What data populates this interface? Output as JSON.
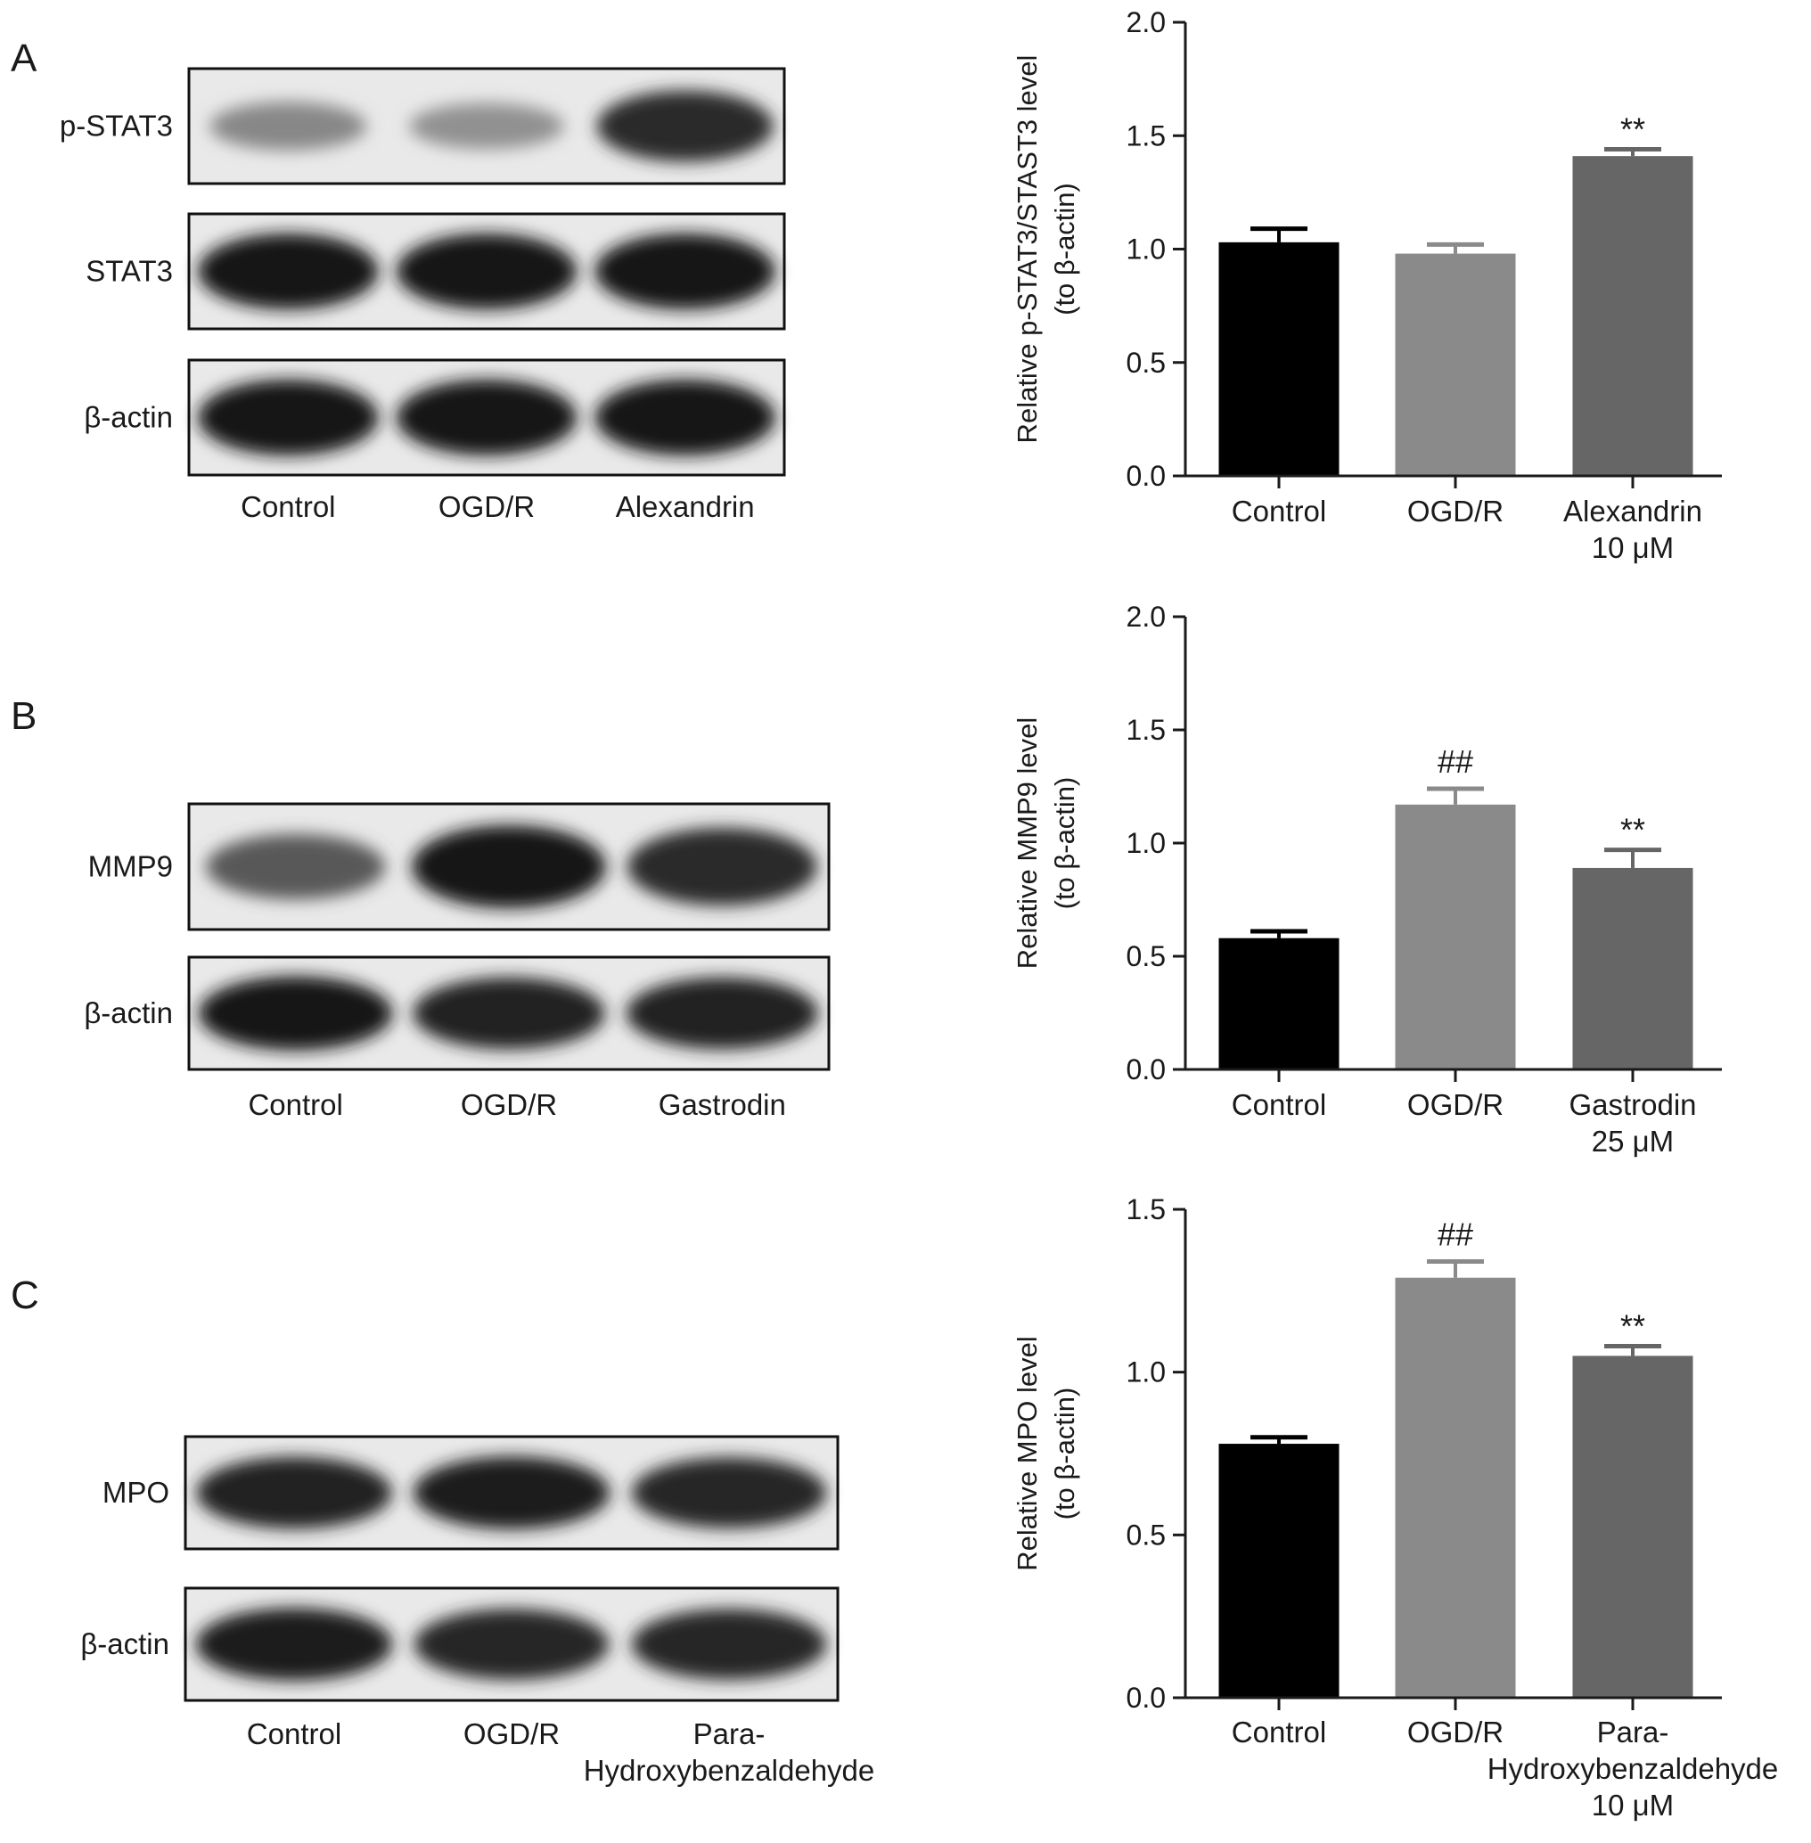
{
  "blots": [
    {
      "panel": "A",
      "lanes": [
        "Control",
        "OGD/R",
        "Alexandrin"
      ],
      "lanes_line2": [
        "",
        "",
        ""
      ],
      "bands": [
        {
          "label": "p-STAT3",
          "intensity": [
            0.35,
            0.3,
            0.85
          ]
        },
        {
          "label": "STAT3",
          "intensity": [
            0.95,
            0.95,
            0.95
          ]
        },
        {
          "label": "β-actin",
          "intensity": [
            0.95,
            0.95,
            0.95
          ]
        }
      ]
    },
    {
      "panel": "B",
      "lanes": [
        "Control",
        "OGD/R",
        "Gastrodin"
      ],
      "lanes_line2": [
        "",
        "",
        ""
      ],
      "bands": [
        {
          "label": "MMP9",
          "intensity": [
            0.6,
            0.95,
            0.85
          ]
        },
        {
          "label": "β-actin",
          "intensity": [
            0.95,
            0.9,
            0.9
          ]
        }
      ]
    },
    {
      "panel": "C",
      "lanes": [
        "Control",
        "OGD/R",
        "Para-"
      ],
      "lanes_line2": [
        "",
        "",
        "Hydroxybenzaldehyde"
      ],
      "bands": [
        {
          "label": "MPO",
          "intensity": [
            0.9,
            0.92,
            0.88
          ]
        },
        {
          "label": "β-actin",
          "intensity": [
            0.92,
            0.88,
            0.88
          ]
        }
      ]
    }
  ],
  "chart_data": [
    {
      "type": "bar",
      "categories": [
        "Control",
        "OGD/R",
        "Alexandrin"
      ],
      "categories_line2": [
        "",
        "",
        "10 μM"
      ],
      "values": [
        1.03,
        0.98,
        1.41
      ],
      "errors": [
        0.06,
        0.04,
        0.03
      ],
      "annotations": [
        "",
        "",
        "**"
      ],
      "colors": [
        "#000000",
        "#8a8a8a",
        "#666666"
      ],
      "ylabel": "Relative p-STAT3/STAST3 level",
      "ylabel_line2": "(to β-actin)",
      "ylim": [
        0,
        2.0
      ],
      "yticks": [
        0.0,
        0.5,
        1.0,
        1.5,
        2.0
      ],
      "ytick_labels": [
        "0.0",
        "0.5",
        "1.0",
        "1.5",
        "2.0"
      ]
    },
    {
      "type": "bar",
      "categories": [
        "Control",
        "OGD/R",
        "Gastrodin"
      ],
      "categories_line2": [
        "",
        "",
        "25 μM"
      ],
      "values": [
        0.58,
        1.17,
        0.89
      ],
      "errors": [
        0.03,
        0.07,
        0.08
      ],
      "annotations": [
        "",
        "##",
        "**"
      ],
      "colors": [
        "#000000",
        "#8a8a8a",
        "#666666"
      ],
      "ylabel": "Relative MMP9 level",
      "ylabel_line2": "(to β-actin)",
      "ylim": [
        0,
        2.0
      ],
      "yticks": [
        0.0,
        0.5,
        1.0,
        1.5,
        2.0
      ],
      "ytick_labels": [
        "0.0",
        "0.5",
        "1.0",
        "1.5",
        "2.0"
      ]
    },
    {
      "type": "bar",
      "categories": [
        "Control",
        "OGD/R",
        "Para-"
      ],
      "categories_line2": [
        "",
        "",
        "Hydroxybenzaldehyde"
      ],
      "categories_line3": [
        "",
        "",
        "10 μM"
      ],
      "values": [
        0.78,
        1.29,
        1.05
      ],
      "errors": [
        0.02,
        0.05,
        0.03
      ],
      "annotations": [
        "",
        "##",
        "**"
      ],
      "colors": [
        "#000000",
        "#8a8a8a",
        "#666666"
      ],
      "ylabel": "Relative MPO level",
      "ylabel_line2": "(to β-actin)",
      "ylim": [
        0,
        1.5
      ],
      "yticks": [
        0.0,
        0.5,
        1.0,
        1.5
      ],
      "ytick_labels": [
        "0.0",
        "0.5",
        "1.0",
        "1.5"
      ]
    }
  ]
}
